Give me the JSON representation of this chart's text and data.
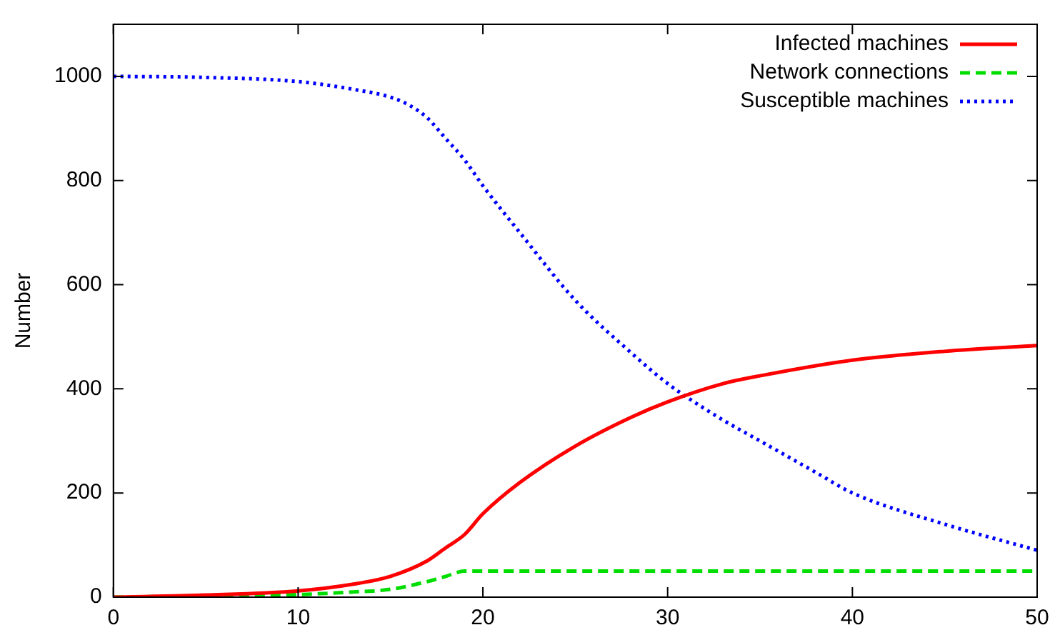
{
  "chart_data": {
    "type": "line",
    "ylabel": "Number",
    "xlim": [
      0,
      50
    ],
    "xticks": [
      0,
      10,
      20,
      30,
      40,
      50
    ],
    "ylim": [
      0,
      1100
    ],
    "yticks": [
      0,
      200,
      400,
      600,
      800,
      1000
    ],
    "grid": false,
    "legend": "top right",
    "marker": "none",
    "series": [
      {
        "name": "Infected machines",
        "color": "#ff0000",
        "line_style": "solid",
        "x": [
          0,
          5,
          10,
          13,
          15,
          17,
          18,
          19,
          20,
          22,
          25,
          28,
          30,
          33,
          35,
          40,
          45,
          50
        ],
        "values": [
          0,
          4,
          12,
          25,
          40,
          70,
          95,
          120,
          160,
          220,
          290,
          345,
          375,
          410,
          425,
          455,
          472,
          483
        ]
      },
      {
        "name": "Network connections",
        "color": "#00dd00",
        "line_style": "dashed",
        "x": [
          0,
          10,
          13,
          15,
          17,
          18,
          19,
          20,
          30,
          40,
          50
        ],
        "values": [
          0,
          5,
          10,
          15,
          30,
          40,
          50,
          50,
          50,
          50,
          50
        ]
      },
      {
        "name": "Susceptible machines",
        "color": "#0000ff",
        "line_style": "dotted",
        "x": [
          0,
          5,
          10,
          13,
          15,
          16,
          17,
          18,
          19,
          20,
          22,
          25,
          28,
          30,
          31,
          33,
          35,
          38,
          40,
          45,
          50
        ],
        "values": [
          1000,
          998,
          990,
          975,
          960,
          945,
          920,
          880,
          840,
          790,
          700,
          570,
          470,
          410,
          385,
          340,
          300,
          240,
          200,
          140,
          90
        ]
      }
    ]
  }
}
